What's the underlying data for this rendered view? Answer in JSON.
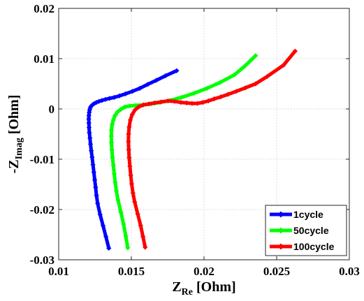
{
  "chart_data": {
    "type": "line",
    "title": "",
    "xlabel": {
      "main": "Z",
      "sub": "Re",
      "unit": " [Ohm]"
    },
    "ylabel": {
      "main": "-Z",
      "sub": "Imag",
      "unit": " [Ohm]"
    },
    "xlim": [
      0.01,
      0.03
    ],
    "ylim": [
      -0.03,
      0.02
    ],
    "xticks": [
      0.01,
      0.015,
      0.02,
      0.025,
      0.03
    ],
    "xtick_labels": [
      "0.01",
      "0.015",
      "0.02",
      "0.025",
      "0.03"
    ],
    "yticks": [
      -0.03,
      -0.02,
      -0.01,
      0,
      0.01,
      0.02
    ],
    "ytick_labels": [
      "-0.03",
      "-0.02",
      "-0.01",
      "0",
      "0.01",
      "0.02"
    ],
    "grid": true,
    "legend_position": "bottom-right",
    "series": [
      {
        "name": "1cycle",
        "color": "#0000ff",
        "x": [
          0.01345,
          0.01325,
          0.01305,
          0.01285,
          0.01268,
          0.0126,
          0.01254,
          0.01248,
          0.01242,
          0.01236,
          0.0123,
          0.01224,
          0.01219,
          0.01215,
          0.01211,
          0.01209,
          0.01208,
          0.01207,
          0.01208,
          0.0121,
          0.01213,
          0.01217,
          0.01222,
          0.01228,
          0.01236,
          0.01246,
          0.0126,
          0.01277,
          0.01298,
          0.01322,
          0.0135,
          0.01382,
          0.01418,
          0.0146,
          0.01507,
          0.01558,
          0.01613,
          0.01672,
          0.01735,
          0.01812
        ],
        "y": [
          -0.0277,
          -0.0254,
          -0.0232,
          -0.021,
          -0.0188,
          -0.0172,
          -0.0156,
          -0.0141,
          -0.0126,
          -0.0111,
          -0.0096,
          -0.0083,
          -0.007,
          -0.0058,
          -0.0047,
          -0.0037,
          -0.0028,
          -0.002,
          -0.0013,
          -0.0007,
          -0.0002,
          0.0002,
          0.0005,
          0.0007,
          0.0009,
          0.0011,
          0.0013,
          0.0015,
          0.0017,
          0.0019,
          0.0021,
          0.0023,
          0.0026,
          0.003,
          0.0035,
          0.0041,
          0.0049,
          0.0057,
          0.0066,
          0.0076
        ]
      },
      {
        "name": "50cycle",
        "color": "#00ff00",
        "x": [
          0.01475,
          0.01462,
          0.01446,
          0.01428,
          0.01408,
          0.01397,
          0.01389,
          0.01382,
          0.01376,
          0.0137,
          0.01366,
          0.01363,
          0.01362,
          0.01363,
          0.01368,
          0.01376,
          0.01388,
          0.01405,
          0.01427,
          0.01455,
          0.0149,
          0.01532,
          0.0158,
          0.01635,
          0.01697,
          0.01768,
          0.01845,
          0.0193,
          0.0202,
          0.02113,
          0.0221,
          0.0228,
          0.02355
        ],
        "y": [
          -0.0276,
          -0.0253,
          -0.0229,
          -0.0205,
          -0.0181,
          -0.0163,
          -0.0146,
          -0.0129,
          -0.0112,
          -0.0096,
          -0.0081,
          -0.0067,
          -0.0054,
          -0.0042,
          -0.0031,
          -0.0022,
          -0.0013,
          -0.0006,
          -0.0001,
          0.0004,
          0.0006,
          0.0007,
          0.0008,
          0.001,
          0.0013,
          0.0017,
          0.0023,
          0.0031,
          0.0041,
          0.0053,
          0.0068,
          0.0085,
          0.0106
        ]
      },
      {
        "name": "100cycle",
        "color": "#ff0000",
        "x": [
          0.01595,
          0.0158,
          0.01564,
          0.01544,
          0.01523,
          0.01511,
          0.01502,
          0.01496,
          0.0149,
          0.01485,
          0.01482,
          0.0148,
          0.01481,
          0.01485,
          0.01493,
          0.01506,
          0.01525,
          0.0155,
          0.01582,
          0.0162,
          0.0166,
          0.01705,
          0.01752,
          0.01798,
          0.0184,
          0.0188,
          0.01918,
          0.01955,
          0.01992,
          0.0203,
          0.0207,
          0.02115,
          0.02165,
          0.02222,
          0.02285,
          0.02355,
          0.02437,
          0.02547,
          0.02627
        ],
        "y": [
          -0.0275,
          -0.0254,
          -0.0232,
          -0.0209,
          -0.0185,
          -0.0167,
          -0.0149,
          -0.0132,
          -0.0114,
          -0.0097,
          -0.0081,
          -0.0065,
          -0.005,
          -0.0036,
          -0.0022,
          -0.0011,
          -0.0002,
          0.0004,
          0.0008,
          0.001,
          0.0012,
          0.0014,
          0.0016,
          0.0015,
          0.0013,
          0.0012,
          0.0011,
          0.0011,
          0.0013,
          0.0016,
          0.002,
          0.0024,
          0.0029,
          0.0035,
          0.0042,
          0.005,
          0.0065,
          0.0087,
          0.0115
        ]
      }
    ]
  }
}
